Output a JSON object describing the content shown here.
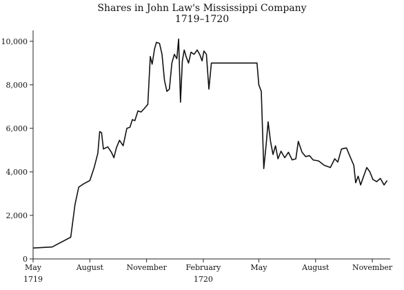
{
  "chart_data": {
    "type": "line",
    "title": "Shares in John Law's Mississippi Company",
    "subtitle": "1719–1720",
    "xlabel": "",
    "ylabel": "",
    "ylim": [
      0,
      10500
    ],
    "xlim": [
      "1719-05-01",
      "1720-11-30"
    ],
    "grid": false,
    "legend": "none",
    "y_ticks": [
      {
        "value": 0,
        "label": "0"
      },
      {
        "value": 2000,
        "label": "2,000"
      },
      {
        "value": 4000,
        "label": "4,000"
      },
      {
        "value": 6000,
        "label": "6,000"
      },
      {
        "value": 8000,
        "label": "8,000"
      },
      {
        "value": 10000,
        "label": "10,000"
      }
    ],
    "x_ticks": [
      {
        "date": "1719-05-01",
        "label": "May",
        "sublabel": "1719"
      },
      {
        "date": "1719-08-01",
        "label": "August"
      },
      {
        "date": "1719-11-01",
        "label": "November"
      },
      {
        "date": "1720-02-01",
        "label": "February",
        "sublabel": "1720"
      },
      {
        "date": "1720-05-01",
        "label": "May"
      },
      {
        "date": "1720-08-01",
        "label": "August"
      },
      {
        "date": "1720-11-01",
        "label": "November"
      }
    ],
    "series": [
      {
        "color": "#111111",
        "points": [
          [
            "1719-05-01",
            500
          ],
          [
            "1719-06-01",
            550
          ],
          [
            "1719-07-01",
            1000
          ],
          [
            "1719-07-08",
            2500
          ],
          [
            "1719-07-14",
            3300
          ],
          [
            "1719-07-22",
            3450
          ],
          [
            "1719-08-01",
            3600
          ],
          [
            "1719-08-08",
            4200
          ],
          [
            "1719-08-14",
            4850
          ],
          [
            "1719-08-17",
            5850
          ],
          [
            "1719-08-20",
            5800
          ],
          [
            "1719-08-23",
            5050
          ],
          [
            "1719-08-30",
            5150
          ],
          [
            "1719-09-05",
            4900
          ],
          [
            "1719-09-09",
            4650
          ],
          [
            "1719-09-13",
            5100
          ],
          [
            "1719-09-18",
            5450
          ],
          [
            "1719-09-24",
            5200
          ],
          [
            "1719-09-30",
            6000
          ],
          [
            "1719-10-05",
            6050
          ],
          [
            "1719-10-09",
            6400
          ],
          [
            "1719-10-13",
            6350
          ],
          [
            "1719-10-18",
            6800
          ],
          [
            "1719-10-23",
            6750
          ],
          [
            "1719-10-28",
            6900
          ],
          [
            "1719-11-03",
            7100
          ],
          [
            "1719-11-07",
            9300
          ],
          [
            "1719-11-10",
            8950
          ],
          [
            "1719-11-14",
            9650
          ],
          [
            "1719-11-17",
            9950
          ],
          [
            "1719-11-22",
            9900
          ],
          [
            "1719-11-26",
            9400
          ],
          [
            "1719-11-30",
            8200
          ],
          [
            "1719-12-04",
            7700
          ],
          [
            "1719-12-08",
            7800
          ],
          [
            "1719-12-12",
            9000
          ],
          [
            "1719-12-16",
            9400
          ],
          [
            "1719-12-20",
            9200
          ],
          [
            "1719-12-23",
            10100
          ],
          [
            "1719-12-26",
            7200
          ],
          [
            "1719-12-29",
            9100
          ],
          [
            "1720-01-01",
            9600
          ],
          [
            "1720-01-04",
            9300
          ],
          [
            "1720-01-08",
            9000
          ],
          [
            "1720-01-12",
            9500
          ],
          [
            "1720-01-17",
            9400
          ],
          [
            "1720-01-22",
            9600
          ],
          [
            "1720-01-26",
            9400
          ],
          [
            "1720-01-30",
            9100
          ],
          [
            "1720-02-02",
            9550
          ],
          [
            "1720-02-06",
            9400
          ],
          [
            "1720-02-10",
            7800
          ],
          [
            "1720-02-14",
            9000
          ],
          [
            "1720-03-01",
            9000
          ],
          [
            "1720-04-01",
            9000
          ],
          [
            "1720-04-28",
            9000
          ],
          [
            "1720-05-01",
            8000
          ],
          [
            "1720-05-05",
            7700
          ],
          [
            "1720-05-09",
            4150
          ],
          [
            "1720-05-13",
            5300
          ],
          [
            "1720-05-16",
            6300
          ],
          [
            "1720-05-20",
            5400
          ],
          [
            "1720-05-24",
            4800
          ],
          [
            "1720-05-28",
            5200
          ],
          [
            "1720-06-01",
            4600
          ],
          [
            "1720-06-06",
            4950
          ],
          [
            "1720-06-12",
            4650
          ],
          [
            "1720-06-18",
            4900
          ],
          [
            "1720-06-24",
            4550
          ],
          [
            "1720-06-30",
            4600
          ],
          [
            "1720-07-04",
            5400
          ],
          [
            "1720-07-10",
            4900
          ],
          [
            "1720-07-16",
            4700
          ],
          [
            "1720-07-22",
            4750
          ],
          [
            "1720-07-28",
            4550
          ],
          [
            "1720-08-06",
            4500
          ],
          [
            "1720-08-15",
            4300
          ],
          [
            "1720-08-25",
            4200
          ],
          [
            "1720-09-01",
            4600
          ],
          [
            "1720-09-06",
            4450
          ],
          [
            "1720-09-12",
            5050
          ],
          [
            "1720-09-20",
            5100
          ],
          [
            "1720-09-26",
            4700
          ],
          [
            "1720-10-02",
            4300
          ],
          [
            "1720-10-05",
            3500
          ],
          [
            "1720-10-09",
            3800
          ],
          [
            "1720-10-13",
            3400
          ],
          [
            "1720-10-18",
            3800
          ],
          [
            "1720-10-23",
            4200
          ],
          [
            "1720-10-28",
            4000
          ],
          [
            "1720-11-02",
            3650
          ],
          [
            "1720-11-08",
            3550
          ],
          [
            "1720-11-14",
            3700
          ],
          [
            "1720-11-20",
            3400
          ],
          [
            "1720-11-25",
            3600
          ]
        ]
      }
    ]
  }
}
